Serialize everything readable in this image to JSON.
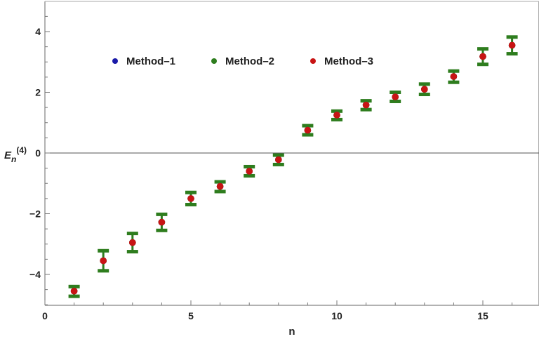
{
  "chart_data": {
    "type": "scatter",
    "title": "",
    "xlabel": "n",
    "ylabel_base": "E",
    "ylabel_sub": "n",
    "ylabel_sup": "(4)",
    "xlim": [
      0,
      17
    ],
    "ylim": [
      -5,
      5
    ],
    "x_ticks": [
      0,
      5,
      10,
      15
    ],
    "y_ticks": [
      -4,
      -2,
      0,
      2,
      4
    ],
    "x_tick_labels": [
      "0",
      "5",
      "10",
      "15"
    ],
    "y_tick_labels": [
      "−4",
      "−2",
      "0",
      "2",
      "4"
    ],
    "grid": false,
    "legend_position": "top-left",
    "series": [
      {
        "name": "Method–1",
        "color": "#1a1aa8",
        "x": [
          1,
          2,
          3,
          4,
          5,
          6,
          7,
          8,
          9,
          10,
          11,
          12,
          13,
          14,
          15,
          16
        ],
        "y": [
          -4.55,
          -3.55,
          -2.95,
          -2.28,
          -1.5,
          -1.1,
          -0.6,
          -0.22,
          0.75,
          1.25,
          1.58,
          1.85,
          2.1,
          2.52,
          3.18,
          3.55
        ],
        "err_low": [],
        "err_high": []
      },
      {
        "name": "Method–2",
        "color": "#2e7d1e",
        "x": [
          1,
          2,
          3,
          4,
          5,
          6,
          7,
          8,
          9,
          10,
          11,
          12,
          13,
          14,
          15,
          16
        ],
        "y": [
          -4.55,
          -3.55,
          -2.95,
          -2.28,
          -1.5,
          -1.1,
          -0.6,
          -0.22,
          0.75,
          1.25,
          1.58,
          1.85,
          2.1,
          2.52,
          3.18,
          3.55
        ],
        "err_low": [
          -4.72,
          -3.88,
          -3.25,
          -2.55,
          -1.7,
          -1.27,
          -0.75,
          -0.38,
          0.6,
          1.1,
          1.43,
          1.7,
          1.93,
          2.33,
          2.92,
          3.27
        ],
        "err_high": [
          -4.4,
          -3.22,
          -2.65,
          -2.02,
          -1.3,
          -0.95,
          -0.45,
          -0.07,
          0.9,
          1.38,
          1.72,
          2.0,
          2.27,
          2.7,
          3.43,
          3.82
        ]
      },
      {
        "name": "Method–3",
        "color": "#c81414",
        "x": [
          1,
          2,
          3,
          4,
          5,
          6,
          7,
          8,
          9,
          10,
          11,
          12,
          13,
          14,
          15,
          16
        ],
        "y": [
          -4.55,
          -3.55,
          -2.95,
          -2.28,
          -1.5,
          -1.1,
          -0.6,
          -0.22,
          0.75,
          1.25,
          1.58,
          1.85,
          2.1,
          2.52,
          3.18,
          3.55
        ],
        "err_low": [],
        "err_high": []
      }
    ]
  }
}
